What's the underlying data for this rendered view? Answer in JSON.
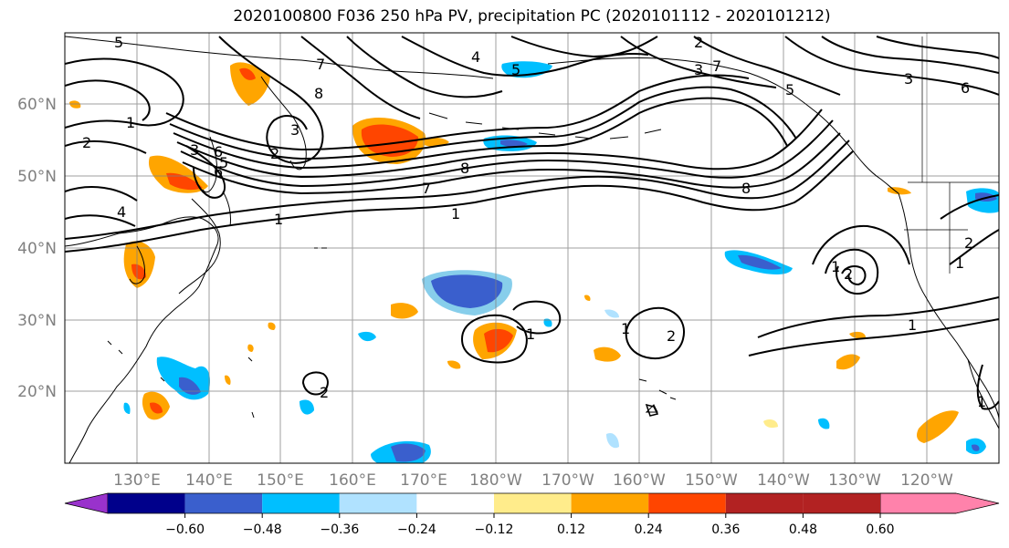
{
  "title": "2020100800 F036 250 hPa PV, precipitation PC (2020101112 - 2020101212)",
  "map": {
    "lat_labels": [
      "60°N",
      "50°N",
      "40°N",
      "30°N",
      "20°N"
    ],
    "lon_labels": [
      "130°E",
      "140°E",
      "150°E",
      "160°E",
      "170°E",
      "180°W",
      "170°W",
      "160°W",
      "150°W",
      "140°W",
      "130°W",
      "120°W"
    ],
    "contour_labels": [
      "5",
      "1",
      "2",
      "3",
      "4",
      "5",
      "6",
      "7",
      "8",
      "1",
      "2",
      "3",
      "4",
      "5",
      "6",
      "7",
      "8",
      "1",
      "2",
      "3",
      "7",
      "8",
      "1",
      "2",
      "1",
      "1",
      "2",
      "1",
      "2",
      "1",
      "2",
      "1",
      "3",
      "5",
      "6"
    ],
    "contour_color": "#000000",
    "grid_color": "#808080",
    "coast_color": "#000000"
  },
  "colorbar": {
    "colors": [
      "#9932cc",
      "#00008b",
      "#3a5fcd",
      "#00bfff",
      "#b0e2ff",
      "#ffffff",
      "#ffec8b",
      "#ffa500",
      "#ff4500",
      "#b22222",
      "#ff82ab"
    ],
    "tick_labels": [
      "−0.60",
      "−0.48",
      "−0.36",
      "−0.24",
      "−0.12",
      "0.12",
      "0.24",
      "0.36",
      "0.48",
      "0.60"
    ]
  }
}
